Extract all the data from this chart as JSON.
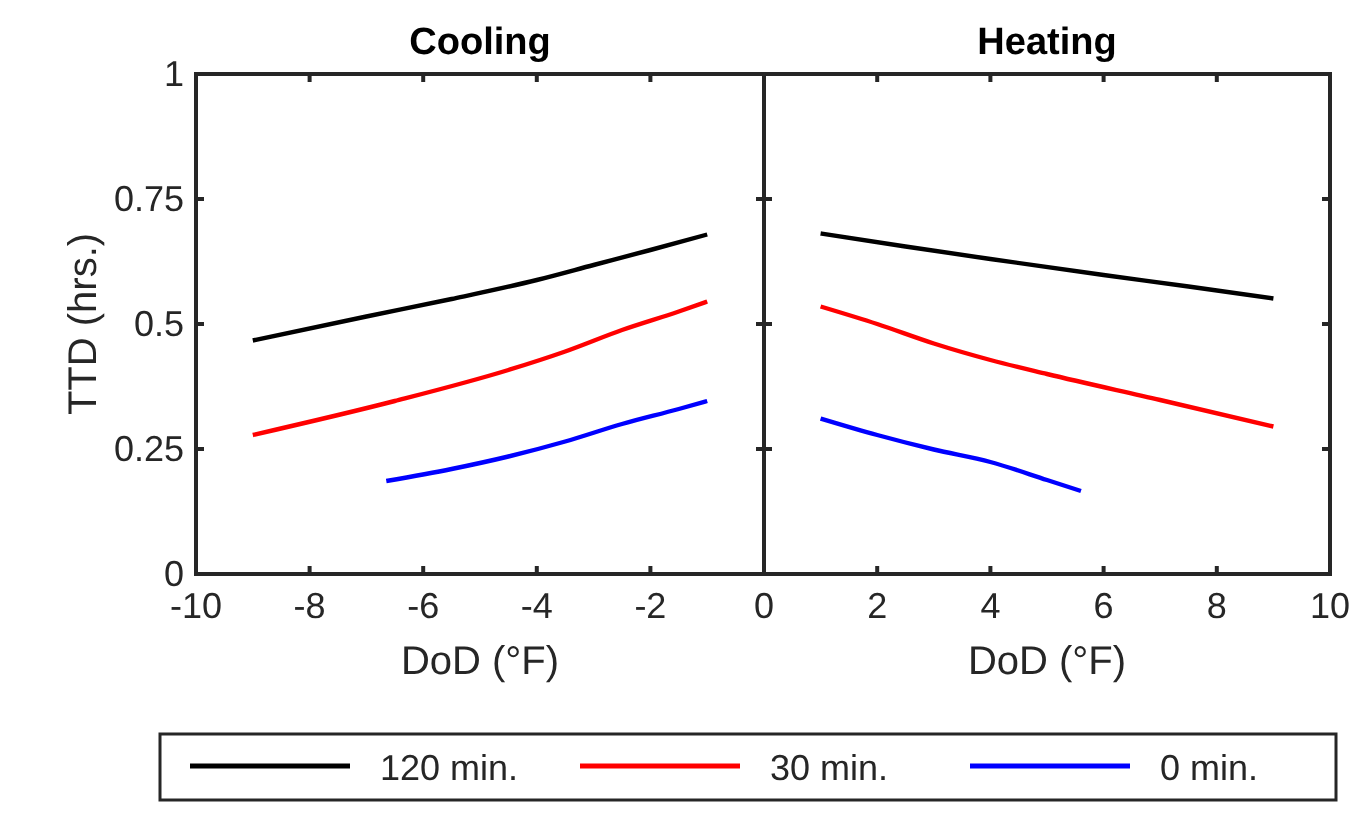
{
  "chart_data": [
    {
      "type": "line",
      "title": "Cooling",
      "xlabel": "DoD (°F)",
      "ylabel": "TTD (hrs.)",
      "xlim": [
        -10,
        0
      ],
      "xticks": [
        -10,
        -8,
        -6,
        -4,
        -2,
        {
          "value": 0,
          "label": null
        }
      ],
      "ylim": [
        0,
        1
      ],
      "yticks": [
        0,
        0.25,
        0.5,
        0.75,
        1
      ],
      "legend": "bottom",
      "grid": false,
      "series": [
        {
          "name": "120 min.",
          "color": "#000000",
          "x": [
            -9,
            -7,
            -5.5,
            -4,
            -3,
            -2,
            -1
          ],
          "values": [
            0.467,
            0.515,
            0.55,
            0.588,
            0.618,
            0.648,
            0.679
          ]
        },
        {
          "name": "30 min.",
          "color": "#ff0000",
          "x": [
            -9,
            -6.5,
            -4.5,
            -3.5,
            -2.5,
            -1.5,
            -1
          ],
          "values": [
            0.278,
            0.346,
            0.408,
            0.445,
            0.488,
            0.525,
            0.545
          ]
        },
        {
          "name": "0 min.",
          "color": "#0000ff",
          "x": [
            -6.65,
            -5.5,
            -4.5,
            -3.5,
            -2.5,
            -1.5,
            -1
          ],
          "values": [
            0.186,
            0.21,
            0.235,
            0.265,
            0.3,
            0.33,
            0.346
          ]
        }
      ]
    },
    {
      "type": "line",
      "title": "Heating",
      "xlabel": "DoD (°F)",
      "xlim": [
        0,
        10
      ],
      "xticks": [
        0,
        2,
        4,
        6,
        8,
        10
      ],
      "ylim": [
        0,
        1
      ],
      "yticks": [
        0,
        0.25,
        0.5,
        0.75,
        1
      ],
      "tick_labels": "x",
      "grid": false,
      "series": [
        {
          "color": "#000000",
          "x": [
            1,
            2.5,
            4,
            6,
            7.5,
            9
          ],
          "values": [
            0.681,
            0.655,
            0.63,
            0.598,
            0.575,
            0.551
          ]
        },
        {
          "color": "#ff0000",
          "x": [
            1,
            2,
            3,
            4,
            5,
            7,
            9
          ],
          "values": [
            0.535,
            0.5,
            0.461,
            0.428,
            0.4,
            0.348,
            0.295
          ]
        },
        {
          "color": "#0000ff",
          "x": [
            1,
            2,
            3,
            4,
            5,
            5.6
          ],
          "values": [
            0.311,
            0.278,
            0.249,
            0.224,
            0.188,
            0.166
          ]
        }
      ]
    }
  ]
}
